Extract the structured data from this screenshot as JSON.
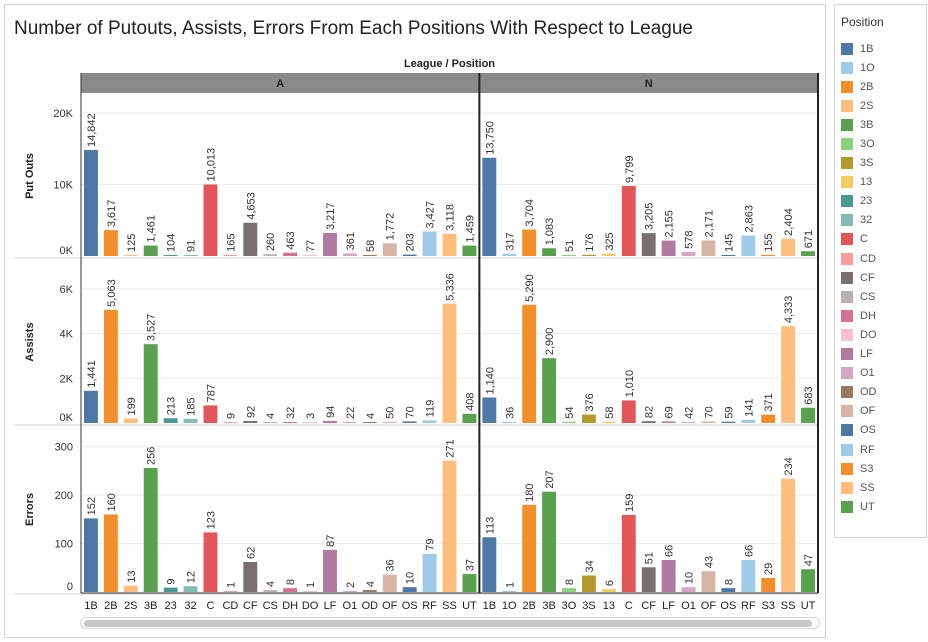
{
  "title": "Number of Putouts, Assists, Errors From Each Positions With Respect to League",
  "legend": {
    "title": "Position",
    "items": [
      {
        "label": "1B",
        "color": "#4e79a7"
      },
      {
        "label": "1O",
        "color": "#a0cbe8"
      },
      {
        "label": "2B",
        "color": "#f28e2b"
      },
      {
        "label": "2S",
        "color": "#ffbe7d"
      },
      {
        "label": "3B",
        "color": "#59a14f"
      },
      {
        "label": "3O",
        "color": "#8cd17d"
      },
      {
        "label": "3S",
        "color": "#b6992d"
      },
      {
        "label": "13",
        "color": "#f1ce63"
      },
      {
        "label": "23",
        "color": "#499894"
      },
      {
        "label": "32",
        "color": "#86bcb6"
      },
      {
        "label": "C",
        "color": "#e15759"
      },
      {
        "label": "CD",
        "color": "#ff9d9a"
      },
      {
        "label": "CF",
        "color": "#79706e"
      },
      {
        "label": "CS",
        "color": "#bab0ac"
      },
      {
        "label": "DH",
        "color": "#d37295"
      },
      {
        "label": "DO",
        "color": "#fabfd2"
      },
      {
        "label": "LF",
        "color": "#b07aa1"
      },
      {
        "label": "O1",
        "color": "#d4a6c8"
      },
      {
        "label": "OD",
        "color": "#9d7660"
      },
      {
        "label": "OF",
        "color": "#d7b5a6"
      },
      {
        "label": "OS",
        "color": "#4e79a7"
      },
      {
        "label": "RF",
        "color": "#a0cbe8"
      },
      {
        "label": "S3",
        "color": "#f28e2b"
      },
      {
        "label": "SS",
        "color": "#ffbe7d"
      },
      {
        "label": "UT",
        "color": "#59a14f"
      }
    ]
  },
  "chart_data": {
    "type": "bar",
    "header": "League / Position",
    "leagues": [
      {
        "name": "A",
        "positions": [
          "1B",
          "2B",
          "2S",
          "3B",
          "23",
          "32",
          "C",
          "CD",
          "CF",
          "CS",
          "DH",
          "DO",
          "LF",
          "O1",
          "OD",
          "OF",
          "OS",
          "RF",
          "SS",
          "UT"
        ],
        "putouts": [
          14842,
          3617,
          125,
          1461,
          104,
          91,
          10013,
          165,
          4653,
          260,
          463,
          77,
          3217,
          361,
          58,
          1772,
          203,
          3427,
          3118,
          1459
        ],
        "assists": [
          1441,
          5063,
          199,
          3527,
          213,
          185,
          787,
          9,
          92,
          4,
          32,
          3,
          94,
          22,
          4,
          50,
          70,
          119,
          5336,
          408
        ],
        "errors": [
          152,
          160,
          13,
          256,
          9,
          12,
          123,
          1,
          62,
          4,
          8,
          1,
          87,
          2,
          4,
          36,
          10,
          79,
          271,
          37
        ]
      },
      {
        "name": "N",
        "positions": [
          "1B",
          "1O",
          "2B",
          "3B",
          "3O",
          "3S",
          "13",
          "C",
          "CF",
          "LF",
          "O1",
          "OF",
          "OS",
          "RF",
          "S3",
          "SS",
          "UT"
        ],
        "putouts": [
          13750,
          317,
          3704,
          1083,
          51,
          176,
          325,
          9799,
          3205,
          2155,
          578,
          2171,
          145,
          2863,
          155,
          2404,
          671
        ],
        "assists": [
          1140,
          36,
          5290,
          2900,
          54,
          376,
          58,
          1010,
          82,
          69,
          42,
          70,
          59,
          141,
          371,
          4333,
          683
        ],
        "errors": [
          113,
          1,
          180,
          207,
          8,
          34,
          6,
          159,
          51,
          66,
          10,
          43,
          8,
          66,
          29,
          234,
          47
        ]
      }
    ],
    "rows": [
      {
        "measure": "Put Outs",
        "key": "putouts",
        "ylim": [
          0,
          21000
        ],
        "ticks": [
          0,
          10000,
          20000
        ],
        "tick_labels": [
          "0K",
          "10K",
          "20K"
        ]
      },
      {
        "measure": "Assists",
        "key": "assists",
        "ylim": [
          0,
          6800
        ],
        "ticks": [
          0,
          2000,
          4000,
          6000
        ],
        "tick_labels": [
          "0K",
          "2K",
          "4K",
          "6K"
        ]
      },
      {
        "measure": "Errors",
        "key": "errors",
        "ylim": [
          0,
          320
        ],
        "ticks": [
          0,
          100,
          200,
          300
        ],
        "tick_labels": [
          "0",
          "100",
          "200",
          "300"
        ]
      }
    ]
  }
}
